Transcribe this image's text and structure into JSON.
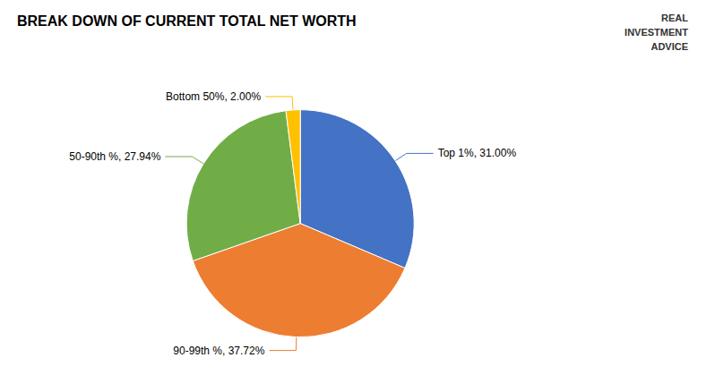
{
  "chart_data": {
    "type": "pie",
    "title": "BREAK DOWN OF CURRENT TOTAL NET WORTH",
    "categories": [
      "Top 1%, 31.00%",
      "90-99th %, 37.72%",
      "50-90th %, 27.94%",
      "Bottom 50%, 2.00%"
    ],
    "values": [
      31.0,
      37.72,
      27.94,
      2.0
    ],
    "colors": [
      "#4472C4",
      "#ED7D31",
      "#70AD47",
      "#FFC000"
    ],
    "annotations": [
      "REAL",
      "INVESTMENT",
      "ADVICE"
    ]
  }
}
